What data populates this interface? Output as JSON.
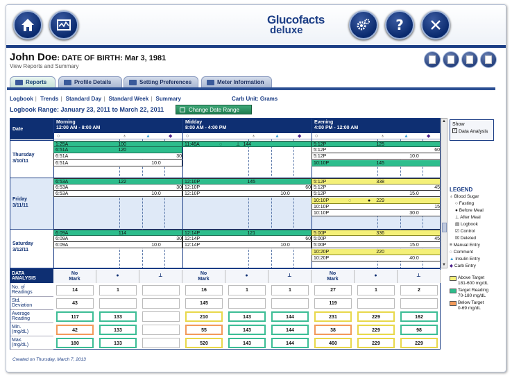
{
  "header": {
    "logo_line1": "Glucofacts",
    "logo_line2": "deluxe"
  },
  "patient": {
    "name": "John Doe",
    "dob_label": ": DATE OF BIRTH: ",
    "dob": "Mar 3, 1981",
    "subtitle": "View Reports and Summary"
  },
  "tabs": [
    {
      "label": "Reports"
    },
    {
      "label": "Profile Details"
    },
    {
      "label": "Setting Preferences"
    },
    {
      "label": "Meter Information"
    }
  ],
  "subnav": {
    "items": [
      "Logbook",
      "Trends",
      "Standard Day",
      "Standard Week",
      "Summary"
    ],
    "carb_unit": "Carb Unit: Grams"
  },
  "range": {
    "label": "Logbook Range: January 23, 2011 to March 22, 2011",
    "button": "Change Date Range"
  },
  "logbook": {
    "date_header": "Date",
    "periods": [
      {
        "name": "Morning",
        "time": "12:00 AM - 8:00 AM"
      },
      {
        "name": "Midday",
        "time": "8:00 AM - 4:00 PM"
      },
      {
        "name": "Evening",
        "time": "4:00 PM - 12:00 AM"
      }
    ],
    "days": [
      {
        "day": "Thursday",
        "date": "3/10/11"
      },
      {
        "day": "Friday",
        "date": "3/11/11"
      },
      {
        "day": "Saturday",
        "date": "3/12/11"
      }
    ],
    "rows": {
      "thu_m": [
        {
          "t": "1:25A",
          "bg": "100",
          "c": "g"
        },
        {
          "t": "6:51A",
          "bg": "120",
          "c": "g"
        },
        {
          "t": "6:51A",
          "carb": "30"
        },
        {
          "t": "6:51A",
          "ins": "10.0"
        }
      ],
      "thu_d": [
        {
          "t": "11:46A",
          "bg": "144",
          "c": "g",
          "mk": "after"
        }
      ],
      "thu_e": [
        {
          "t": "5:12P",
          "bg": "125",
          "c": "g"
        },
        {
          "t": "5:12P",
          "carb": "60"
        },
        {
          "t": "5:12P",
          "ins": "10.0"
        },
        {
          "t": "10:10P",
          "bg": "145",
          "c": "g"
        }
      ],
      "fri_m": [
        {
          "t": "6:53A",
          "bg": "122",
          "c": "g"
        },
        {
          "t": "6:53A",
          "carb": "30"
        },
        {
          "t": "6:53A",
          "ins": "10.0"
        }
      ],
      "fri_d": [
        {
          "t": "12:10P",
          "bg": "145",
          "c": "g"
        },
        {
          "t": "12:10P",
          "carb": "60"
        },
        {
          "t": "12:10P",
          "ins": "10.0"
        }
      ],
      "fri_e": [
        {
          "t": "5:12P",
          "bg": "338",
          "c": "y"
        },
        {
          "t": "5:12P",
          "carb": "45"
        },
        {
          "t": "5:12P",
          "ins": "15.0"
        },
        {
          "t": "10:10P",
          "bg": "229",
          "c": "y",
          "mk": "before"
        },
        {
          "t": "10:10P",
          "carb": "15"
        },
        {
          "t": "10:10P",
          "ins": "30.0"
        }
      ],
      "sat_m": [
        {
          "t": "6:09A",
          "bg": "114",
          "c": "g"
        },
        {
          "t": "6:09A",
          "carb": "30"
        },
        {
          "t": "6:09A",
          "ins": "10.0"
        }
      ],
      "sat_d": [
        {
          "t": "12:14P",
          "bg": "121",
          "c": "g"
        },
        {
          "t": "12:14P",
          "carb": "60"
        },
        {
          "t": "12:14P",
          "ins": "10.0"
        }
      ],
      "sat_e": [
        {
          "t": "5:00P",
          "bg": "336",
          "c": "y"
        },
        {
          "t": "5:00P",
          "carb": "45"
        },
        {
          "t": "5:00P",
          "ins": "15.0"
        },
        {
          "t": "10:20P",
          "bg": "220",
          "c": "y"
        },
        {
          "t": "10:20P",
          "ins": "40.0"
        }
      ]
    }
  },
  "analysis": {
    "title_l1": "DATA",
    "title_l2": "ANALYSIS",
    "cols": [
      "No Mark",
      "before",
      "after",
      "No Mark",
      "before",
      "after",
      "No Mark",
      "before",
      "after"
    ],
    "row_labels": [
      "No. of Readings",
      "Std. Deviation",
      "Average Reading",
      "Min. (mg/dL)",
      "Max. (mg/dL)"
    ],
    "values": [
      [
        "14",
        "1",
        "",
        "16",
        "1",
        "1",
        "27",
        "1",
        "2"
      ],
      [
        "43",
        "",
        "",
        "145",
        "",
        "",
        "119",
        "",
        ""
      ],
      [
        "117",
        "133",
        "",
        "210",
        "143",
        "144",
        "231",
        "229",
        "162"
      ],
      [
        "42",
        "133",
        "",
        "55",
        "143",
        "144",
        "38",
        "229",
        "98"
      ],
      [
        "180",
        "133",
        "",
        "520",
        "143",
        "144",
        "460",
        "229",
        "229"
      ]
    ],
    "colors": [
      [
        "",
        "",
        "",
        "",
        "",
        "",
        "",
        "",
        ""
      ],
      [
        "",
        "",
        "",
        "",
        "",
        "",
        "",
        "",
        ""
      ],
      [
        "g",
        "g",
        "",
        "y",
        "g",
        "g",
        "y",
        "y",
        "g"
      ],
      [
        "o",
        "g",
        "",
        "o",
        "g",
        "g",
        "o",
        "y",
        "g"
      ],
      [
        "g",
        "g",
        "",
        "y",
        "g",
        "g",
        "y",
        "y",
        "y"
      ]
    ]
  },
  "show": {
    "title": "Show",
    "item": "Data Analysis"
  },
  "legend": {
    "title": "LEGEND",
    "items": [
      "Blood Sugar",
      "Fasting",
      "Before Meal",
      "After Meal",
      "Logbook",
      "Control",
      "Deleted",
      "Manual Entry",
      "Comment",
      "Insulin Entry",
      "Carb Entry"
    ],
    "swatches": [
      {
        "label1": "Above Target",
        "label2": "181-600 mg/dL",
        "color": "#f4f078"
      },
      {
        "label1": "Target Reading",
        "label2": "70-180 mg/dL",
        "color": "#2dbd8c"
      },
      {
        "label1": "Below Target",
        "label2": "0-69 mg/dL",
        "color": "#f29a5a"
      }
    ]
  },
  "footer": "Created on Thursday, March 7, 2013"
}
